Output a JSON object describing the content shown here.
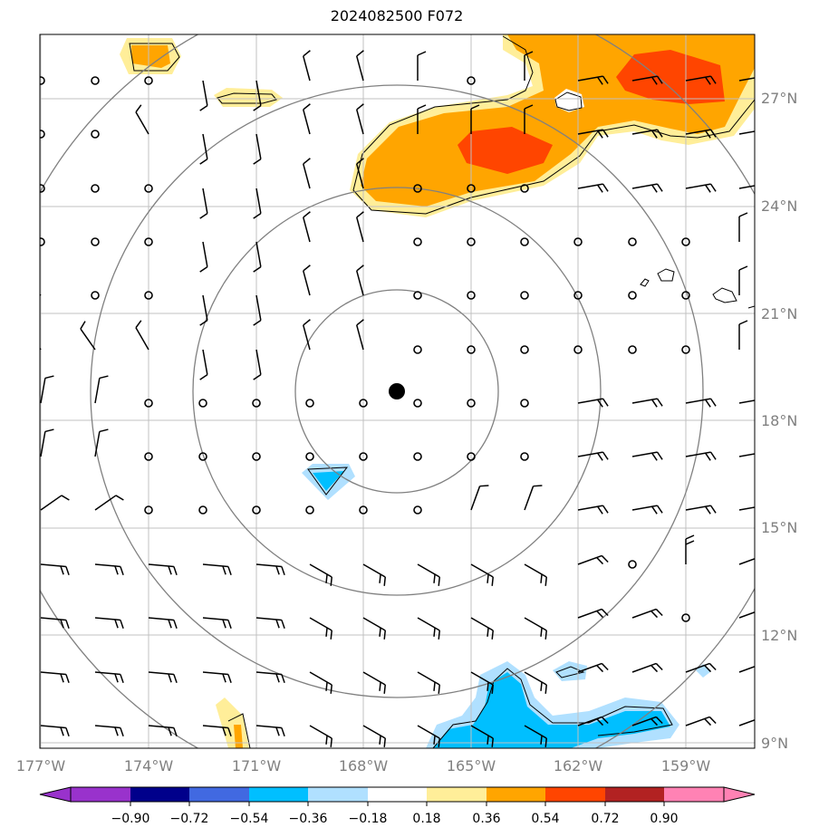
{
  "title": "2024082500 F072",
  "map": {
    "lon_labels": [
      "177°W",
      "174°W",
      "171°W",
      "168°W",
      "165°W",
      "162°W",
      "159°W"
    ],
    "lat_labels": [
      "27°N",
      "24°N",
      "21°N",
      "18°N",
      "15°N",
      "12°N",
      "9°N"
    ],
    "center_marker": "storm-center-dot"
  },
  "colorbar": {
    "tick_labels": [
      "−0.90",
      "−0.72",
      "−0.54",
      "−0.36",
      "−0.18",
      "0.18",
      "0.36",
      "0.54",
      "0.72",
      "0.90"
    ],
    "colors": [
      "#9932cc",
      "#00008b",
      "#4169e1",
      "#00bfff",
      "#b0e0ff",
      "#ffffff",
      "#ffee99",
      "#ffa500",
      "#ff4500",
      "#b22222",
      "#ff82b4"
    ]
  }
}
